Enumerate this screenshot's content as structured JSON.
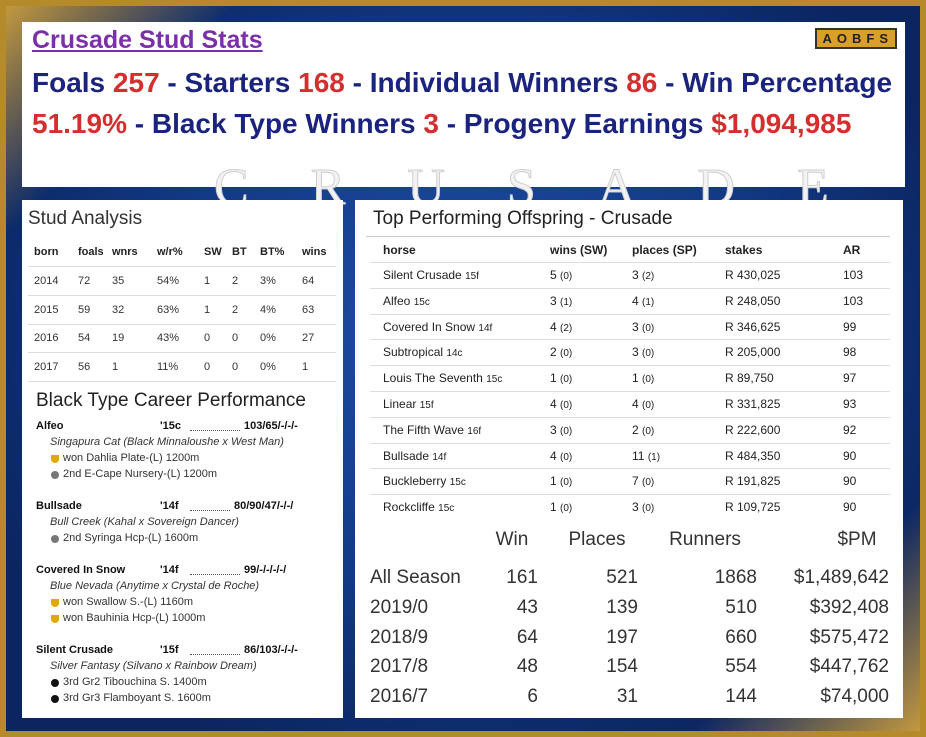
{
  "header": {
    "title": "Crusade Stud Stats",
    "badge": "AOBFS",
    "separator": "-",
    "stats": [
      {
        "label": "Foals",
        "value": "257"
      },
      {
        "label": "Starters",
        "value": "168"
      },
      {
        "label": "Individual Winners",
        "value": "86"
      },
      {
        "label": "Win Percentage",
        "value": "51.19%"
      },
      {
        "label": "Black Type Winners",
        "value": "3"
      },
      {
        "label": "Progeny Earnings",
        "value": "$1,094,985"
      }
    ],
    "watermark": "CRUSADE"
  },
  "stud_analysis": {
    "title": "Stud Analysis",
    "columns": [
      "born",
      "foals",
      "wnrs",
      "w/r%",
      "SW",
      "BT",
      "BT%",
      "wins"
    ],
    "rows": [
      [
        "2014",
        "72",
        "35",
        "54%",
        "1",
        "2",
        "3%",
        "64"
      ],
      [
        "2015",
        "59",
        "32",
        "63%",
        "1",
        "2",
        "4%",
        "63"
      ],
      [
        "2016",
        "54",
        "19",
        "43%",
        "0",
        "0",
        "0%",
        "27"
      ],
      [
        "2017",
        "56",
        "1",
        "11%",
        "0",
        "0",
        "0%",
        "1"
      ]
    ]
  },
  "black_type": {
    "title": "Black Type Career Performance",
    "entries": [
      {
        "name": "Alfeo",
        "age": "'15c",
        "form": "103/65/-/-/-",
        "pedigree": "Singapura Cat (Black Minnaloushe x West Man)",
        "results": [
          "won Dahlia Plate-(L) 1200m",
          "2nd E-Cape Nursery-(L) 1200m"
        ]
      },
      {
        "name": "Bullsade",
        "age": "'14f",
        "form": "80/90/47/-/-/",
        "pedigree": "Bull Creek (Kahal x Sovereign Dancer)",
        "results": [
          "2nd Syringa Hcp-(L) 1600m"
        ]
      },
      {
        "name": "Covered In Snow",
        "age": "'14f",
        "form": "99/-/-/-/-/",
        "pedigree": "Blue Nevada (Anytime x Crystal de Roche)",
        "results": [
          "won Swallow S.-(L) 1160m",
          "won Bauhinia Hcp-(L) 1000m"
        ]
      },
      {
        "name": "Silent Crusade",
        "age": "'15f",
        "form": "86/103/-/-/-",
        "pedigree": "Silver Fantasy (Silvano x Rainbow Dream)",
        "results": [
          "3rd Gr2 Tibouchina S. 1400m",
          "3rd Gr3 Flamboyant S. 1600m"
        ]
      }
    ]
  },
  "offspring": {
    "title": "Top Performing Offspring - Crusade",
    "columns": [
      "horse",
      "wins (SW)",
      "places (SP)",
      "stakes",
      "AR"
    ],
    "rows": [
      {
        "name": "Silent Crusade",
        "age": "15f",
        "wins": "5",
        "sw": "(0)",
        "places": "3",
        "sp": "(2)",
        "stakes": "R 430,025",
        "ar": "103"
      },
      {
        "name": "Alfeo",
        "age": "15c",
        "wins": "3",
        "sw": "(1)",
        "places": "4",
        "sp": "(1)",
        "stakes": "R 248,050",
        "ar": "103"
      },
      {
        "name": "Covered In Snow",
        "age": "14f",
        "wins": "4",
        "sw": "(2)",
        "places": "3",
        "sp": "(0)",
        "stakes": "R 346,625",
        "ar": "99"
      },
      {
        "name": "Subtropical",
        "age": "14c",
        "wins": "2",
        "sw": "(0)",
        "places": "3",
        "sp": "(0)",
        "stakes": "R 205,000",
        "ar": "98"
      },
      {
        "name": "Louis The Seventh",
        "age": "15c",
        "wins": "1",
        "sw": "(0)",
        "places": "1",
        "sp": "(0)",
        "stakes": "R 89,750",
        "ar": "97"
      },
      {
        "name": "Linear",
        "age": "15f",
        "wins": "4",
        "sw": "(0)",
        "places": "4",
        "sp": "(0)",
        "stakes": "R 331,825",
        "ar": "93"
      },
      {
        "name": "The Fifth Wave",
        "age": "16f",
        "wins": "3",
        "sw": "(0)",
        "places": "2",
        "sp": "(0)",
        "stakes": "R 222,600",
        "ar": "92"
      },
      {
        "name": "Bullsade",
        "age": "14f",
        "wins": "4",
        "sw": "(0)",
        "places": "11",
        "sp": "(1)",
        "stakes": "R 484,350",
        "ar": "90"
      },
      {
        "name": "Buckleberry",
        "age": "15c",
        "wins": "1",
        "sw": "(0)",
        "places": "7",
        "sp": "(0)",
        "stakes": "R 191,825",
        "ar": "90"
      },
      {
        "name": "Rockcliffe",
        "age": "15c",
        "wins": "1",
        "sw": "(0)",
        "places": "3",
        "sp": "(0)",
        "stakes": "R 109,725",
        "ar": "90"
      }
    ]
  },
  "summary": {
    "columns": [
      "Win",
      "Places",
      "Runners",
      "$PM"
    ],
    "rows": [
      [
        "All Season",
        "161",
        "521",
        "1868",
        "$1,489,642"
      ],
      [
        "2019/0",
        "43",
        "139",
        "510",
        "$392,408"
      ],
      [
        "2018/9",
        "64",
        "197",
        "660",
        "$575,472"
      ],
      [
        "2017/8",
        "48",
        "154",
        "554",
        "$447,762"
      ],
      [
        "2016/7",
        "6",
        "31",
        "144",
        "$74,000"
      ]
    ]
  }
}
